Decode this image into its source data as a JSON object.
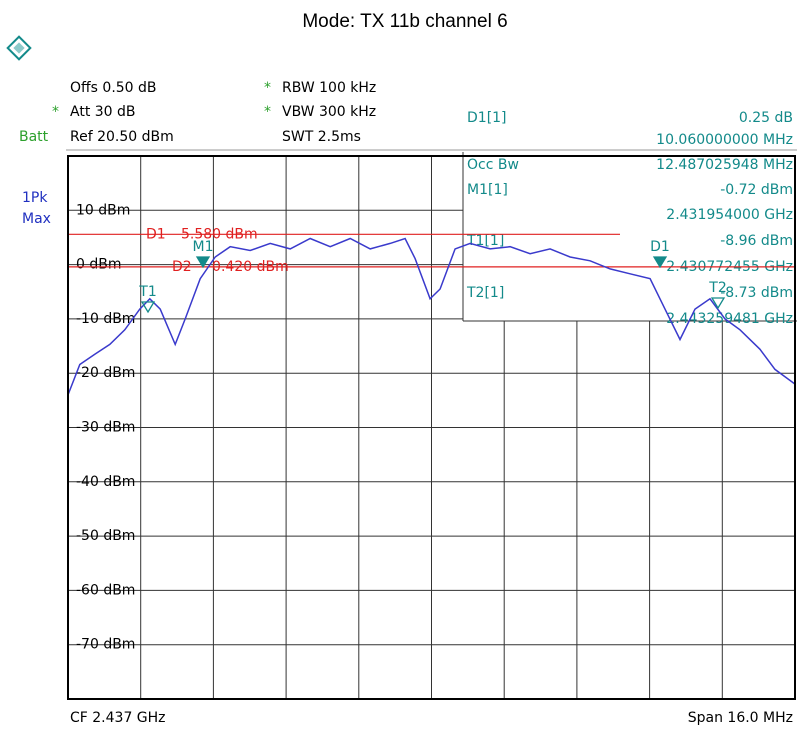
{
  "chart_data": {
    "type": "line",
    "title": "Mode: TX 11b channel 6",
    "header": {
      "offs": "Offs 0.50 dB",
      "att": "Att  30 dB",
      "batt": "Batt",
      "ref": "Ref 20.50 dBm",
      "rbw": "RBW 100 kHz",
      "vbw": "VBW 300 kHz",
      "swt": "SWT 2.5ms",
      "coupled": "*"
    },
    "trace_label": [
      "1Pk",
      "Max"
    ],
    "readout": [
      {
        "label": "D1[1]",
        "lines": [
          "0.25 dB",
          "10.060000000 MHz"
        ]
      },
      {
        "label": "Occ Bw",
        "lines": [
          "12.487025948 MHz"
        ]
      },
      {
        "label": "M1[1]",
        "lines": [
          "-0.72 dBm",
          "2.431954000 GHz"
        ]
      },
      {
        "label": "T1[1]",
        "lines": [
          "-8.96 dBm",
          "2.430772455 GHz"
        ]
      },
      {
        "label": "T2[1]",
        "lines": [
          "-8.73 dBm",
          "2.443259481 GHz"
        ]
      }
    ],
    "display_lines": [
      {
        "name": "D1",
        "value": 5.58,
        "label": "5.580 dBm"
      },
      {
        "name": "D2",
        "value": -0.42,
        "label": "-0.420 dBm"
      }
    ],
    "markers": [
      "M1",
      "T1",
      "T2",
      "D1"
    ],
    "x_center_label": "CF 2.437 GHz",
    "x_span_label": "Span 16.0 MHz",
    "x": [
      2429.0,
      2429.26,
      2429.59,
      2429.92,
      2430.25,
      2430.58,
      2430.8,
      2431.03,
      2431.36,
      2431.58,
      2431.91,
      2432.24,
      2432.57,
      2433.01,
      2433.45,
      2433.89,
      2434.33,
      2434.77,
      2435.21,
      2435.65,
      2436.09,
      2436.42,
      2436.64,
      2436.97,
      2437.19,
      2437.52,
      2437.85,
      2438.29,
      2438.73,
      2439.17,
      2439.61,
      2440.05,
      2440.49,
      2440.93,
      2441.37,
      2441.81,
      2442.14,
      2442.47,
      2442.8,
      2443.13,
      2443.46,
      2443.79,
      2444.23,
      2444.56,
      2445.0
    ],
    "values": [
      -24,
      -18.4,
      -16.5,
      -14.7,
      -12,
      -8.2,
      -6.3,
      -8.2,
      -14.7,
      -10,
      -2.6,
      1.4,
      3.3,
      2.6,
      3.9,
      2.9,
      4.8,
      3.3,
      4.8,
      2.9,
      3.9,
      4.8,
      1.1,
      -6.3,
      -4.5,
      2.9,
      3.9,
      2.9,
      3.3,
      2.0,
      2.9,
      1.4,
      0.7,
      -0.8,
      -1.7,
      -2.6,
      -8.2,
      -13.8,
      -8.2,
      -6.3,
      -10,
      -12,
      -15.6,
      -19.3,
      -22
    ],
    "color": "#3a3acc",
    "line_color": "#e02020",
    "xlim": [
      2429,
      2445
    ],
    "xticks": [
      2430.6,
      2432.2,
      2433.8,
      2435.4,
      2437,
      2438.6,
      2440.2,
      2441.8,
      2443.4
    ],
    "ylim": [
      -80,
      20
    ],
    "yticks": [
      {
        "value": 10,
        "label": "10 dBm"
      },
      {
        "value": 0,
        "label": "0 dBm"
      },
      {
        "value": -10,
        "label": "-10 dBm"
      },
      {
        "value": -20,
        "label": "-20 dBm"
      },
      {
        "value": -30,
        "label": "-30 dBm"
      },
      {
        "value": -40,
        "label": "-40 dBm"
      },
      {
        "value": -50,
        "label": "-50 dBm"
      },
      {
        "value": -60,
        "label": "-60 dBm"
      },
      {
        "value": -70,
        "label": "-70 dBm"
      }
    ],
    "grid": true
  }
}
